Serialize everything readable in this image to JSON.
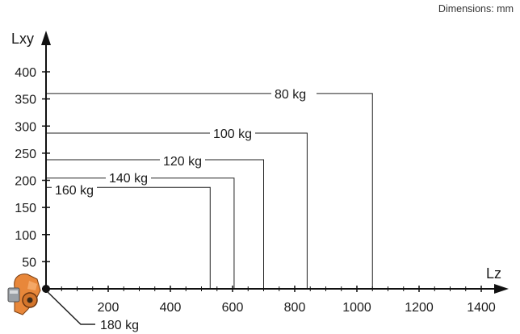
{
  "header": {
    "dimensions_note": "Dimensions: mm"
  },
  "chart_data": {
    "type": "line",
    "xlabel": "Lz",
    "ylabel": "Lxy",
    "xlim": [
      0,
      1400
    ],
    "ylim": [
      0,
      400
    ],
    "x_ticks": [
      "200",
      "400",
      "600",
      "800",
      "1000",
      "1200",
      "1400"
    ],
    "y_ticks": [
      "50",
      "100",
      "150",
      "200",
      "250",
      "300",
      "350",
      "400"
    ],
    "series": [
      {
        "name": "80 kg",
        "lz": 1050,
        "lxy": 360
      },
      {
        "name": "100 kg",
        "lz": 840,
        "lxy": 287
      },
      {
        "name": "120 kg",
        "lz": 700,
        "lxy": 238
      },
      {
        "name": "140 kg",
        "lz": 605,
        "lxy": 204
      },
      {
        "name": "160 kg",
        "lz": 528,
        "lxy": 187
      },
      {
        "name": "180 kg",
        "lz": 0,
        "lxy": 0
      }
    ]
  }
}
